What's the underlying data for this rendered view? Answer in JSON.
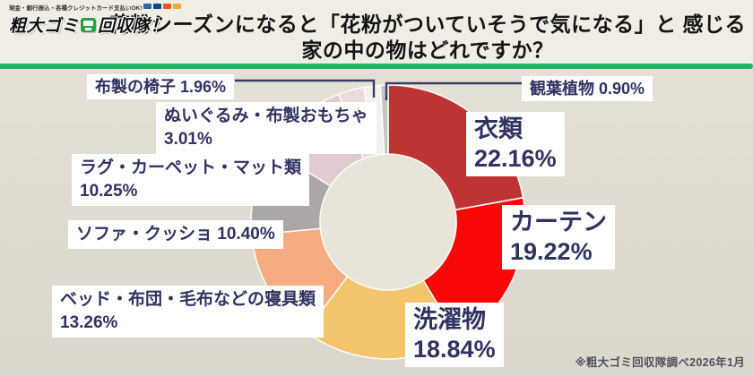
{
  "brand": {
    "tagline": "現金・銀行振込・各種クレジットカード支払いOK!",
    "name_left": "粗大ゴミ",
    "name_right": "回収隊！",
    "badge_color": "#23A344",
    "card_chip_colors": [
      "#2B66B1",
      "#16418C",
      "#E8522F",
      "#F2A93B"
    ]
  },
  "title": {
    "line1": "花粉シーズンになると「花粉がついていそうで気になる」と",
    "line2": "感じる家の中の物はどれですか？"
  },
  "footnote": "※粗大ゴミ回収隊調べ2026年1月",
  "accent_colors": {
    "divider_green": "#23B164",
    "label_navy": "#2F3360"
  },
  "chart_data": {
    "type": "pie",
    "subtype": "donut",
    "title": "花粉シーズンになると「花粉がついていそうで気になる」と感じる家の中の物はどれですか？",
    "unit": "%",
    "start_angle_deg": -90,
    "direction": "clockwise",
    "hole_color": "#E8E4D9",
    "source": "※粗大ゴミ回収隊調べ2026年1月",
    "segments": [
      {
        "label": "衣類",
        "value": 22.16,
        "value_label": "22.16%",
        "color": "#BE3432"
      },
      {
        "label": "カーテン",
        "value": 19.22,
        "value_label": "19.22%",
        "color": "#FA0808"
      },
      {
        "label": "洗濯物",
        "value": 18.84,
        "value_label": "18.84%",
        "color": "#F2C46B"
      },
      {
        "label": "ベッド・布団・毛布などの寝具類",
        "value": 13.26,
        "value_label": "13.26%",
        "color": "#F6AB80"
      },
      {
        "label": "ソファ・クッショ",
        "value": 10.4,
        "value_label": "10.40%",
        "color": "#ABA7A6"
      },
      {
        "label": "ラグ・カーペット・マット類",
        "value": 10.25,
        "value_label": "10.25%",
        "color": "#E0CCD0"
      },
      {
        "label": "ぬいぐるみ・布製おもちゃ",
        "value": 3.01,
        "value_label": "3.01%",
        "color": "#EBDADC"
      },
      {
        "label": "布製の椅子",
        "value": 1.96,
        "value_label": "1.96%",
        "color": "#F3F1EE"
      },
      {
        "label": "観葉植物",
        "value": 0.9,
        "value_label": "0.90%",
        "color": "#C6C4C5"
      }
    ]
  }
}
